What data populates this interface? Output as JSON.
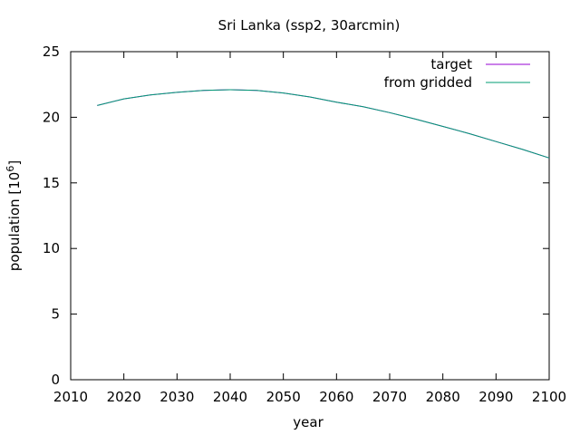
{
  "chart_data": {
    "type": "line",
    "title": "Sri Lanka (ssp2, 30arcmin)",
    "xlabel": "year",
    "ylabel_main": "population [10",
    "ylabel_sup": "6",
    "ylabel_close": "]",
    "xlim": [
      2010,
      2100
    ],
    "ylim": [
      0,
      25
    ],
    "xticks": [
      2010,
      2020,
      2030,
      2040,
      2050,
      2060,
      2070,
      2080,
      2090,
      2100
    ],
    "yticks": [
      0,
      5,
      10,
      15,
      20,
      25
    ],
    "grid": false,
    "legend_position": "top-right",
    "series": [
      {
        "name": "target",
        "color": "#9400d3",
        "x": [
          2015,
          2020,
          2025,
          2030,
          2035,
          2040,
          2045,
          2050,
          2055,
          2060,
          2065,
          2070,
          2075,
          2080,
          2085,
          2090,
          2095,
          2100
        ],
        "y": [
          20.9,
          21.4,
          21.7,
          21.9,
          22.05,
          22.1,
          22.05,
          21.85,
          21.55,
          21.15,
          20.8,
          20.35,
          19.85,
          19.3,
          18.75,
          18.15,
          17.55,
          16.9
        ]
      },
      {
        "name": "from gridded",
        "color": "#009e73",
        "x": [
          2015,
          2020,
          2025,
          2030,
          2035,
          2040,
          2045,
          2050,
          2055,
          2060,
          2065,
          2070,
          2075,
          2080,
          2085,
          2090,
          2095,
          2100
        ],
        "y": [
          20.9,
          21.4,
          21.7,
          21.9,
          22.05,
          22.1,
          22.05,
          21.85,
          21.55,
          21.15,
          20.8,
          20.35,
          19.85,
          19.3,
          18.75,
          18.15,
          17.55,
          16.9
        ]
      }
    ]
  }
}
